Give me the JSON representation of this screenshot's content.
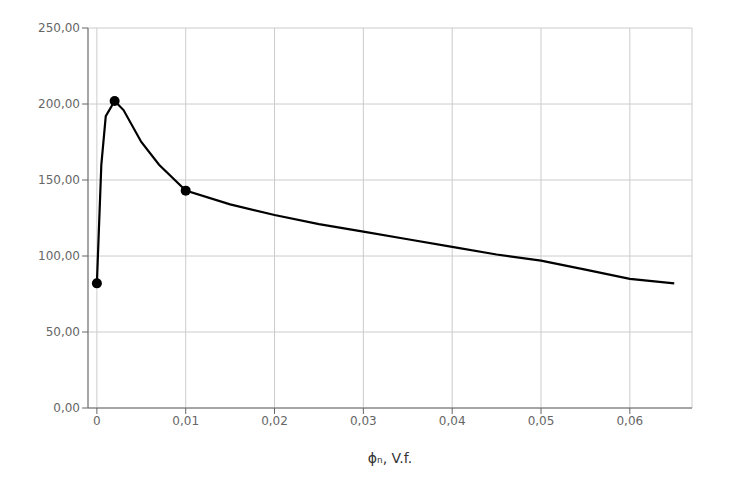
{
  "chart_data": {
    "type": "line",
    "xlabel": "ϕₙ, V.f.",
    "series": [
      {
        "type": "line",
        "color": "#000000",
        "x": [
          0.0,
          0.0005,
          0.001,
          0.002,
          0.003,
          0.005,
          0.007,
          0.01,
          0.015,
          0.02,
          0.025,
          0.03,
          0.035,
          0.04,
          0.045,
          0.05,
          0.055,
          0.06,
          0.065
        ],
        "values": [
          82,
          160,
          192,
          202,
          196,
          175,
          160,
          143,
          134,
          127,
          121,
          116,
          111,
          106,
          101,
          97,
          91,
          85,
          82
        ]
      },
      {
        "type": "scatter",
        "color": "#000000",
        "x": [
          0.0,
          0.002,
          0.01
        ],
        "values": [
          82,
          202,
          143
        ]
      }
    ],
    "xlim": [
      -0.001,
      0.067
    ],
    "ylim": [
      0,
      250
    ],
    "xticks": [
      0,
      {
        "value": 0.01,
        "label": "0,01"
      },
      {
        "value": 0.02,
        "label": "0,02"
      },
      {
        "value": 0.03,
        "label": "0,03"
      },
      {
        "value": 0.04,
        "label": "0,04"
      },
      {
        "value": 0.05,
        "label": "0,05"
      },
      {
        "value": 0.06,
        "label": "0,06"
      }
    ],
    "yticks": [
      {
        "value": 0,
        "label": "0,00"
      },
      {
        "value": 50,
        "label": "50,00"
      },
      {
        "value": 100,
        "label": "100,00"
      },
      {
        "value": 150,
        "label": "150,00"
      },
      {
        "value": 200,
        "label": "200,00"
      },
      {
        "value": 250,
        "label": "250,00"
      }
    ],
    "grid": true
  }
}
